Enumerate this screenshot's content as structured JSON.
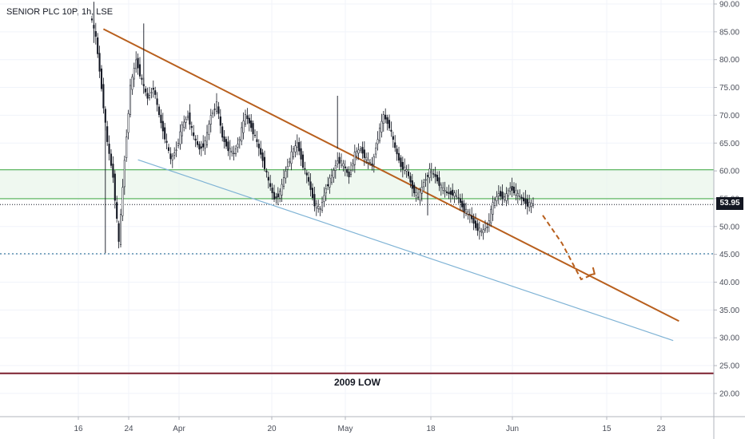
{
  "header": {
    "symbol_title": "SENIOR PLC 10P, 1h, LSE"
  },
  "chart_data": {
    "type": "candlestick",
    "title": "SENIOR PLC 10P, 1h, LSE",
    "ylim": [
      15,
      90.5
    ],
    "y_ticks": [
      "90.00",
      "85.00",
      "80.00",
      "75.00",
      "70.00",
      "65.00",
      "60.00",
      "55.00",
      "50.00",
      "45.00",
      "40.00",
      "35.00",
      "30.00",
      "25.00",
      "20.00"
    ],
    "x_ticks": [
      "16",
      "24",
      "Apr",
      "20",
      "May",
      "18",
      "Jun",
      "15",
      "23"
    ],
    "last_price": "53.95",
    "grid": true,
    "price_path": [
      [
        0,
        88
      ],
      [
        3,
        84
      ],
      [
        6,
        75
      ],
      [
        9,
        65
      ],
      [
        12,
        59
      ],
      [
        15,
        47
      ],
      [
        18,
        62
      ],
      [
        21,
        75
      ],
      [
        24,
        80
      ],
      [
        27,
        76
      ],
      [
        30,
        73
      ],
      [
        33,
        75
      ],
      [
        36,
        70
      ],
      [
        39,
        66
      ],
      [
        42,
        62
      ],
      [
        45,
        64
      ],
      [
        48,
        68
      ],
      [
        51,
        70
      ],
      [
        54,
        66
      ],
      [
        57,
        64
      ],
      [
        60,
        65
      ],
      [
        63,
        70
      ],
      [
        66,
        72
      ],
      [
        69,
        66
      ],
      [
        72,
        64
      ],
      [
        75,
        63
      ],
      [
        78,
        66
      ],
      [
        81,
        70
      ],
      [
        84,
        68
      ],
      [
        87,
        65
      ],
      [
        90,
        62
      ],
      [
        93,
        58
      ],
      [
        96,
        55
      ],
      [
        99,
        56
      ],
      [
        102,
        60
      ],
      [
        105,
        63
      ],
      [
        108,
        65
      ],
      [
        111,
        61
      ],
      [
        114,
        58
      ],
      [
        117,
        54
      ],
      [
        120,
        53
      ],
      [
        123,
        57
      ],
      [
        126,
        59
      ],
      [
        129,
        62
      ],
      [
        132,
        61
      ],
      [
        135,
        59
      ],
      [
        138,
        63
      ],
      [
        141,
        64
      ],
      [
        144,
        62
      ],
      [
        147,
        61
      ],
      [
        150,
        66
      ],
      [
        153,
        70
      ],
      [
        156,
        68
      ],
      [
        159,
        64
      ],
      [
        162,
        61
      ],
      [
        165,
        60
      ],
      [
        168,
        57
      ],
      [
        171,
        55
      ],
      [
        174,
        58
      ],
      [
        177,
        60
      ],
      [
        180,
        59
      ],
      [
        183,
        57
      ],
      [
        186,
        56
      ],
      [
        189,
        56
      ],
      [
        192,
        55
      ],
      [
        195,
        53
      ],
      [
        198,
        52
      ],
      [
        201,
        50
      ],
      [
        204,
        49
      ],
      [
        207,
        50
      ],
      [
        210,
        54
      ],
      [
        213,
        56
      ],
      [
        216,
        55
      ],
      [
        219,
        57
      ],
      [
        222,
        56
      ],
      [
        225,
        55
      ],
      [
        228,
        54
      ],
      [
        231,
        53.95
      ]
    ],
    "resistance_line": {
      "from": [
        6,
        85.5
      ],
      "to": [
        306,
        33
      ]
    },
    "support_line": {
      "from": [
        24,
        62
      ],
      "to": [
        303,
        29.5
      ]
    },
    "projection_path": [
      [
        235,
        52
      ],
      [
        245,
        47
      ],
      [
        255,
        40.5
      ],
      [
        262,
        41.5
      ]
    ],
    "zone": {
      "from": 55,
      "to": 60.2
    },
    "level_45": 45.1,
    "level_2009_low": 23.6,
    "annotation": "2009 LOW",
    "colors": {
      "up_candle": "#131722",
      "down_candle": "#131722",
      "resistance": "#b85f1d",
      "support": "#7fb3d5",
      "zone_border": "#4caf50",
      "zone_fill": "#e8f5e9",
      "level_45": "#2a6f97",
      "low_line": "#7b1f2e",
      "price_line": "#131722"
    }
  }
}
